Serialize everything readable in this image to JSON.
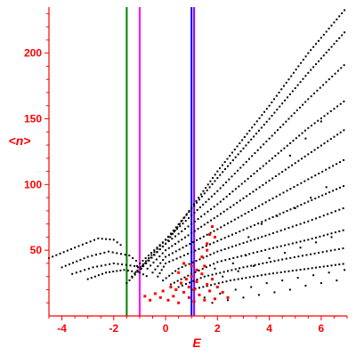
{
  "chart_data": {
    "type": "scatter",
    "title": "",
    "xlabel": "E",
    "ylabel": "<n>",
    "xlim": [
      -4.5,
      7.0
    ],
    "ylim": [
      0,
      235
    ],
    "xticks": [
      -4,
      -2,
      0,
      2,
      4,
      6
    ],
    "yticks": [
      50,
      100,
      150,
      200
    ],
    "grid": false,
    "legend": "none",
    "colors": {
      "axis": "#ff0000",
      "black_points": "#000000",
      "red_points": "#ff0000",
      "green_line": "#008000",
      "magenta_line": "#ff00ff",
      "blue_line": "#0000ff",
      "purple_line": "#8a00ff"
    },
    "vertical_lines": [
      {
        "x": -1.5,
        "color": "#008000"
      },
      {
        "x": -1.0,
        "color": "#ff00ff"
      },
      {
        "x": 1.0,
        "color": "#0000ff"
      },
      {
        "x": 1.1,
        "color": "#8a00ff"
      }
    ],
    "series": [
      {
        "color": "#000000",
        "curves": [
          {
            "points": [
              [
                -1.5,
                25
              ],
              [
                0,
                55
              ],
              [
                2,
                110
              ],
              [
                4,
                160
              ],
              [
                5.5,
                200
              ],
              [
                7,
                235
              ]
            ]
          },
          {
            "points": [
              [
                -1.3,
                30
              ],
              [
                0,
                58
              ],
              [
                2,
                105
              ],
              [
                4,
                150
              ],
              [
                5.5,
                185
              ],
              [
                7,
                218
              ]
            ]
          },
          {
            "points": [
              [
                -1.1,
                38
              ],
              [
                0,
                58
              ],
              [
                2,
                95
              ],
              [
                4,
                135
              ],
              [
                5.5,
                165
              ],
              [
                7,
                193
              ]
            ]
          },
          {
            "points": [
              [
                -0.9,
                38
              ],
              [
                0,
                55
              ],
              [
                2,
                85
              ],
              [
                4,
                118
              ],
              [
                5.5,
                143
              ],
              [
                7,
                165
              ]
            ]
          },
          {
            "points": [
              [
                -0.7,
                36
              ],
              [
                0,
                50
              ],
              [
                2,
                76
              ],
              [
                4,
                103
              ],
              [
                5.5,
                123
              ],
              [
                7,
                143
              ]
            ]
          },
          {
            "points": [
              [
                -0.5,
                33
              ],
              [
                0,
                45
              ],
              [
                2,
                66
              ],
              [
                4,
                88
              ],
              [
                5.5,
                104
              ],
              [
                7,
                120
              ]
            ]
          },
          {
            "points": [
              [
                -0.3,
                30
              ],
              [
                0,
                40
              ],
              [
                2,
                57
              ],
              [
                4,
                74
              ],
              [
                5.5,
                87
              ],
              [
                7,
                100
              ]
            ]
          },
          {
            "points": [
              [
                -0.1,
                27
              ],
              [
                0.5,
                36
              ],
              [
                2,
                49
              ],
              [
                4,
                62
              ],
              [
                5.5,
                72
              ],
              [
                7,
                83
              ]
            ]
          },
          {
            "points": [
              [
                0.2,
                24
              ],
              [
                1,
                32
              ],
              [
                2,
                41
              ],
              [
                4,
                51
              ],
              [
                5.5,
                58
              ],
              [
                7,
                66
              ]
            ]
          },
          {
            "points": [
              [
                0.5,
                22
              ],
              [
                1.5,
                30
              ],
              [
                3,
                37
              ],
              [
                4.5,
                43
              ],
              [
                7,
                52
              ]
            ]
          },
          {
            "points": [
              [
                1,
                20
              ],
              [
                2.5,
                27
              ],
              [
                4,
                32
              ],
              [
                5.5,
                36
              ],
              [
                7,
                40
              ]
            ]
          },
          {
            "points": [
              [
                -4.5,
                44
              ],
              [
                -3.5,
                52
              ],
              [
                -2.6,
                59
              ],
              [
                -2.0,
                58
              ],
              [
                -1.6,
                52
              ]
            ]
          },
          {
            "points": [
              [
                -4.0,
                37
              ],
              [
                -3.0,
                45
              ],
              [
                -2.2,
                49
              ],
              [
                -1.4,
                46
              ],
              [
                -1.0,
                40
              ]
            ]
          },
          {
            "points": [
              [
                -3.6,
                32
              ],
              [
                -2.8,
                37
              ],
              [
                -2.0,
                40
              ],
              [
                -1.2,
                38
              ],
              [
                -0.8,
                35
              ]
            ]
          },
          {
            "points": [
              [
                -3.0,
                28
              ],
              [
                -2.3,
                33
              ],
              [
                -1.6,
                35
              ],
              [
                -1.0,
                33
              ],
              [
                -0.6,
                29
              ]
            ]
          }
        ],
        "scatter_points": [
          [
            1.5,
            14
          ],
          [
            1.8,
            10
          ],
          [
            2.1,
            17
          ],
          [
            2.4,
            12
          ],
          [
            2.7,
            20
          ],
          [
            3.0,
            14
          ],
          [
            3.3,
            22
          ],
          [
            3.6,
            16
          ],
          [
            3.9,
            25
          ],
          [
            4.2,
            18
          ],
          [
            4.5,
            27
          ],
          [
            4.8,
            20
          ],
          [
            5.1,
            29
          ],
          [
            5.4,
            23
          ],
          [
            5.7,
            31
          ],
          [
            6.0,
            25
          ],
          [
            6.3,
            33
          ],
          [
            6.6,
            27
          ],
          [
            6.9,
            35
          ],
          [
            2.2,
            30
          ],
          [
            2.8,
            34
          ],
          [
            3.4,
            38
          ],
          [
            4.0,
            44
          ],
          [
            4.6,
            48
          ],
          [
            5.2,
            52
          ],
          [
            5.8,
            56
          ],
          [
            6.4,
            60
          ],
          [
            3.2,
            60
          ],
          [
            3.7,
            70
          ],
          [
            4.3,
            76
          ],
          [
            5.0,
            82
          ],
          [
            5.6,
            90
          ],
          [
            6.2,
            98
          ],
          [
            4.8,
            122
          ],
          [
            5.4,
            135
          ],
          [
            6.0,
            148
          ],
          [
            2.6,
            40
          ],
          [
            3.1,
            46
          ],
          [
            1.9,
            36
          ]
        ]
      },
      {
        "color": "#ff0000",
        "scatter_points": [
          [
            0.1,
            12
          ],
          [
            0.3,
            15
          ],
          [
            0.5,
            10
          ],
          [
            0.7,
            18
          ],
          [
            0.9,
            14
          ],
          [
            1.1,
            20
          ],
          [
            1.3,
            16
          ],
          [
            1.5,
            12
          ],
          [
            1.7,
            19
          ],
          [
            1.9,
            13
          ],
          [
            0.2,
            22
          ],
          [
            0.4,
            20
          ],
          [
            0.6,
            25
          ],
          [
            0.8,
            28
          ],
          [
            1.0,
            30
          ],
          [
            1.2,
            26
          ],
          [
            1.4,
            32
          ],
          [
            1.6,
            24
          ],
          [
            1.8,
            28
          ],
          [
            2.0,
            22
          ],
          [
            -0.2,
            14
          ],
          [
            -0.4,
            17
          ],
          [
            -0.6,
            12
          ],
          [
            -0.8,
            15
          ],
          [
            -0.1,
            19
          ],
          [
            0.5,
            33
          ],
          [
            0.7,
            40
          ],
          [
            1.4,
            45
          ],
          [
            1.5,
            38
          ],
          [
            1.6,
            55
          ],
          [
            1.7,
            62
          ],
          [
            1.8,
            68
          ],
          [
            1.6,
            50
          ],
          [
            1.9,
            60
          ],
          [
            2.2,
            18
          ],
          [
            2.4,
            14
          ],
          [
            1.2,
            35
          ],
          [
            1.0,
            38
          ],
          [
            0.9,
            22
          ],
          [
            1.1,
            11
          ]
        ]
      }
    ]
  }
}
